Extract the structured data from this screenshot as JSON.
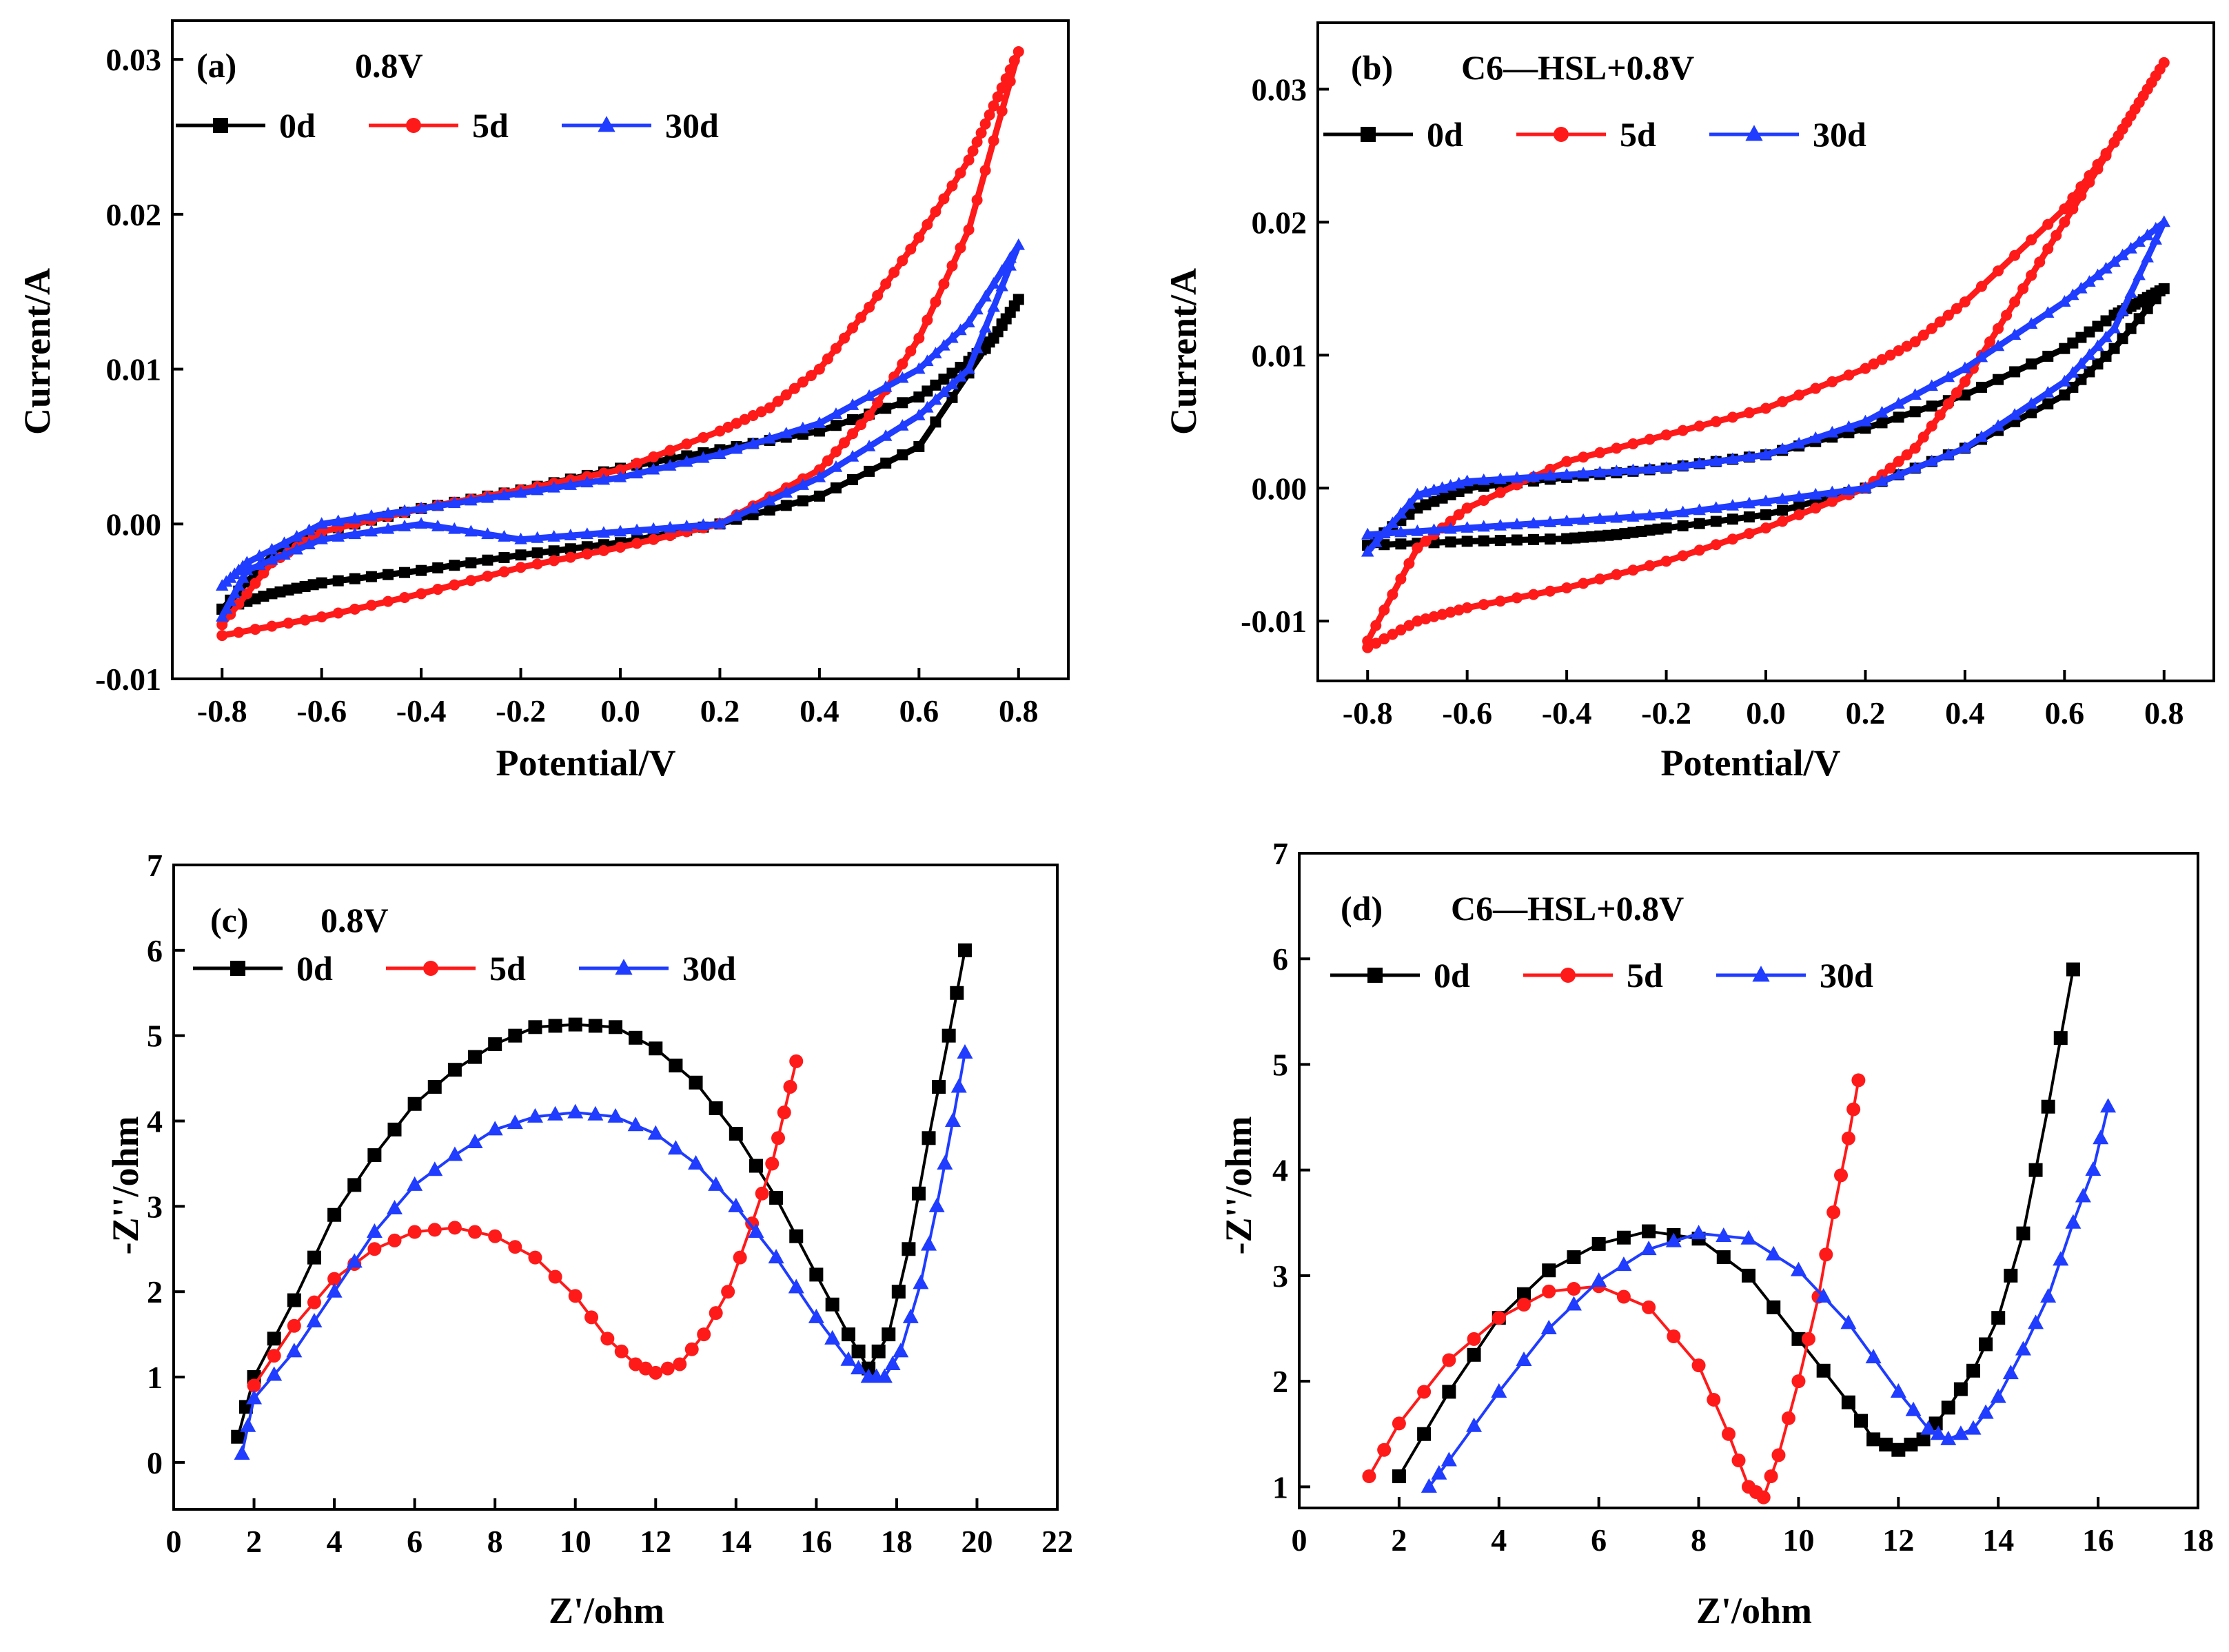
{
  "colors": {
    "s0d": "#000000",
    "s5d": "#ff1a1a",
    "s30d": "#1f3cff"
  },
  "chart_data": [
    {
      "id": "a",
      "type": "line",
      "panel_label": "(a)",
      "title": "0.8V",
      "xlabel": "Potential/V",
      "ylabel": "Current/A",
      "xlim": [
        -0.9,
        0.9
      ],
      "ylim": [
        -0.01,
        0.0325
      ],
      "xticks": [
        -0.8,
        -0.6,
        -0.4,
        -0.2,
        0.0,
        0.2,
        0.4,
        0.6,
        0.8
      ],
      "xtick_labels": [
        "-0.8",
        "-0.6",
        "-0.4",
        "-0.2",
        "0.0",
        "0.2",
        "0.4",
        "0.6",
        "0.8"
      ],
      "yticks": [
        -0.01,
        0.0,
        0.01,
        0.02,
        0.03
      ],
      "ytick_labels": [
        "-0.01",
        "0.00",
        "0.01",
        "0.02",
        "0.03"
      ],
      "series": [
        {
          "name": "0d",
          "color": "#000000",
          "marker": "square",
          "x": [
            -0.8,
            -0.7,
            -0.6,
            -0.4,
            -0.2,
            0,
            0.2,
            0.4,
            0.6,
            0.8,
            0.75,
            0.7,
            0.6,
            0.4,
            0.2,
            0,
            -0.2,
            -0.4,
            -0.6,
            -0.7,
            -0.8
          ],
          "y": [
            -0.0055,
            -0.0045,
            -0.0038,
            -0.003,
            -0.002,
            -0.0012,
            0.0,
            0.0018,
            0.005,
            0.0145,
            0.012,
            0.0105,
            0.0082,
            0.006,
            0.0048,
            0.0036,
            0.0022,
            0.001,
            -0.0005,
            -0.002,
            -0.0055
          ]
        },
        {
          "name": "5d",
          "color": "#ff1a1a",
          "marker": "circle",
          "x": [
            -0.8,
            -0.6,
            -0.4,
            -0.2,
            0,
            0.2,
            0.4,
            0.5,
            0.6,
            0.7,
            0.8,
            0.75,
            0.7,
            0.6,
            0.5,
            0.4,
            0.3,
            0.2,
            0,
            -0.2,
            -0.4,
            -0.6,
            -0.7,
            -0.8
          ],
          "y": [
            -0.0072,
            -0.006,
            -0.0045,
            -0.0028,
            -0.0015,
            0.0,
            0.0035,
            0.007,
            0.012,
            0.019,
            0.0305,
            0.027,
            0.0235,
            0.0185,
            0.014,
            0.01,
            0.0075,
            0.006,
            0.0035,
            0.0022,
            0.001,
            -0.0005,
            -0.0025,
            -0.0065
          ]
        },
        {
          "name": "30d",
          "color": "#1f3cff",
          "marker": "triangle",
          "x": [
            -0.8,
            -0.75,
            -0.6,
            -0.4,
            -0.2,
            0,
            0.2,
            0.4,
            0.6,
            0.7,
            0.8,
            0.7,
            0.6,
            0.4,
            0.2,
            0,
            -0.2,
            -0.4,
            -0.6,
            -0.75,
            -0.8
          ],
          "y": [
            -0.006,
            -0.003,
            -0.001,
            0.0,
            -0.001,
            -0.0005,
            0.0,
            0.003,
            0.007,
            0.01,
            0.018,
            0.013,
            0.01,
            0.0065,
            0.0045,
            0.003,
            0.002,
            0.001,
            0.0,
            -0.0025,
            -0.004
          ]
        }
      ]
    },
    {
      "id": "b",
      "type": "line",
      "panel_label": "(b)",
      "title": "C6—HSL+0.8V",
      "xlabel": "Potential/V",
      "ylabel": "Current/A",
      "xlim": [
        -0.9,
        0.9
      ],
      "ylim": [
        -0.0145,
        0.035
      ],
      "xticks": [
        -0.8,
        -0.6,
        -0.4,
        -0.2,
        0.0,
        0.2,
        0.4,
        0.6,
        0.8
      ],
      "xtick_labels": [
        "-0.8",
        "-0.6",
        "-0.4",
        "-0.2",
        "0.0",
        "0.2",
        "0.4",
        "0.6",
        "0.8"
      ],
      "yticks": [
        -0.01,
        0.0,
        0.01,
        0.02,
        0.03
      ],
      "ytick_labels": [
        "-0.01",
        "0.00",
        "0.01",
        "0.02",
        "0.03"
      ],
      "series": [
        {
          "name": "0d",
          "color": "#000000",
          "marker": "square",
          "x": [
            -0.8,
            -0.6,
            -0.4,
            -0.3,
            -0.2,
            0,
            0.2,
            0.4,
            0.6,
            0.7,
            0.8,
            0.75,
            0.7,
            0.6,
            0.4,
            0.2,
            0,
            -0.2,
            -0.4,
            -0.6,
            -0.7,
            -0.8
          ],
          "y": [
            -0.0043,
            -0.004,
            -0.0038,
            -0.0035,
            -0.003,
            -0.002,
            0.0,
            0.003,
            0.007,
            0.0105,
            0.015,
            0.014,
            0.013,
            0.0105,
            0.007,
            0.0045,
            0.0025,
            0.0015,
            0.0008,
            0.0,
            -0.0015,
            -0.0043
          ]
        },
        {
          "name": "5d",
          "color": "#ff1a1a",
          "marker": "circle",
          "x": [
            -0.8,
            -0.7,
            -0.6,
            -0.4,
            -0.2,
            0,
            0.2,
            0.3,
            0.4,
            0.5,
            0.6,
            0.7,
            0.8,
            0.75,
            0.7,
            0.6,
            0.4,
            0.3,
            0.2,
            0,
            -0.2,
            -0.4,
            -0.6,
            -0.7,
            -0.8
          ],
          "y": [
            -0.012,
            -0.01,
            -0.009,
            -0.0075,
            -0.0055,
            -0.003,
            0.0,
            0.003,
            0.008,
            0.014,
            0.02,
            0.026,
            0.032,
            0.029,
            0.026,
            0.021,
            0.014,
            0.011,
            0.009,
            0.006,
            0.004,
            0.002,
            -0.0015,
            -0.0045,
            -0.0115
          ]
        },
        {
          "name": "30d",
          "color": "#1f3cff",
          "marker": "triangle",
          "x": [
            -0.8,
            -0.6,
            -0.4,
            -0.2,
            0,
            0.2,
            0.4,
            0.6,
            0.7,
            0.8,
            0.7,
            0.6,
            0.4,
            0.2,
            0,
            -0.2,
            -0.4,
            -0.6,
            -0.7,
            -0.8
          ],
          "y": [
            -0.0035,
            -0.003,
            -0.0025,
            -0.002,
            -0.001,
            0.0,
            0.003,
            0.008,
            0.012,
            0.02,
            0.017,
            0.014,
            0.009,
            0.005,
            0.0025,
            0.0015,
            0.001,
            0.0005,
            -0.0005,
            -0.0048
          ]
        }
      ]
    },
    {
      "id": "c",
      "type": "line",
      "panel_label": "(c)",
      "title": "0.8V",
      "xlabel": "Z'/ohm",
      "ylabel": "-Z''/ohm",
      "xlim": [
        0,
        22
      ],
      "ylim": [
        -0.55,
        7
      ],
      "xticks": [
        0,
        2,
        4,
        6,
        8,
        10,
        12,
        14,
        16,
        18,
        20,
        22
      ],
      "xtick_labels": [
        "0",
        "2",
        "4",
        "6",
        "8",
        "10",
        "12",
        "14",
        "16",
        "18",
        "20",
        "22"
      ],
      "yticks": [
        0,
        1,
        2,
        3,
        4,
        5,
        6,
        7
      ],
      "ytick_labels": [
        "0",
        "1",
        "2",
        "3",
        "4",
        "5",
        "6",
        "7"
      ],
      "series": [
        {
          "name": "0d",
          "color": "#000000",
          "marker": "square",
          "x": [
            1.6,
            2.0,
            3.0,
            4.0,
            5.0,
            6.0,
            7.0,
            8.0,
            9.0,
            10.0,
            11.0,
            12.0,
            13.0,
            14.0,
            15.0,
            16.0,
            16.8,
            17.3,
            17.8,
            18.3,
            18.8,
            19.3,
            19.7
          ],
          "y": [
            0.3,
            1.0,
            1.9,
            2.9,
            3.6,
            4.2,
            4.6,
            4.9,
            5.1,
            5.13,
            5.1,
            4.85,
            4.45,
            3.85,
            3.1,
            2.2,
            1.5,
            1.1,
            1.5,
            2.5,
            3.8,
            5.0,
            6.0
          ]
        },
        {
          "name": "5d",
          "color": "#ff1a1a",
          "marker": "circle",
          "x": [
            2.0,
            3.0,
            4.0,
            5.0,
            6.0,
            7.0,
            8.0,
            9.0,
            10.0,
            10.8,
            11.5,
            12.0,
            12.6,
            13.2,
            13.8,
            14.4,
            14.9,
            15.2,
            15.5
          ],
          "y": [
            0.9,
            1.6,
            2.15,
            2.5,
            2.7,
            2.75,
            2.65,
            2.4,
            1.95,
            1.45,
            1.15,
            1.05,
            1.15,
            1.5,
            2.0,
            2.8,
            3.5,
            4.1,
            4.7
          ]
        },
        {
          "name": "30d",
          "color": "#1f3cff",
          "marker": "triangle",
          "x": [
            1.7,
            2.0,
            3.0,
            4.0,
            5.0,
            6.0,
            7.0,
            8.0,
            9.0,
            10.0,
            11.0,
            12.0,
            13.0,
            14.0,
            15.0,
            16.0,
            16.8,
            17.3,
            17.7,
            18.1,
            18.6,
            19.0,
            19.4,
            19.7
          ],
          "y": [
            0.1,
            0.75,
            1.3,
            2.0,
            2.7,
            3.25,
            3.6,
            3.9,
            4.05,
            4.1,
            4.05,
            3.85,
            3.5,
            3.0,
            2.4,
            1.7,
            1.2,
            1.0,
            1.0,
            1.3,
            2.1,
            3.0,
            4.0,
            4.8
          ]
        }
      ]
    },
    {
      "id": "d",
      "type": "line",
      "panel_label": "(d)",
      "title": "C6—HSL+0.8V",
      "xlabel": "Z'/ohm",
      "ylabel": "-Z''/ohm",
      "xlim": [
        0,
        18
      ],
      "ylim": [
        0.8,
        7
      ],
      "xticks": [
        0,
        2,
        4,
        6,
        8,
        10,
        12,
        14,
        16,
        18
      ],
      "xtick_labels": [
        "0",
        "2",
        "4",
        "6",
        "8",
        "10",
        "12",
        "14",
        "16",
        "18"
      ],
      "yticks": [
        1,
        2,
        3,
        4,
        5,
        6,
        7
      ],
      "ytick_labels": [
        "1",
        "2",
        "3",
        "4",
        "5",
        "6",
        "7"
      ],
      "series": [
        {
          "name": "0d",
          "color": "#000000",
          "marker": "square",
          "x": [
            2.0,
            3.0,
            4.0,
            5.0,
            6.0,
            7.0,
            8.0,
            9.0,
            10.0,
            11.0,
            11.5,
            12.0,
            12.5,
            13.0,
            13.5,
            14.0,
            14.5,
            15.0,
            15.5
          ],
          "y": [
            1.1,
            1.9,
            2.6,
            3.05,
            3.3,
            3.42,
            3.35,
            3.0,
            2.4,
            1.8,
            1.45,
            1.35,
            1.45,
            1.75,
            2.1,
            2.6,
            3.4,
            4.6,
            5.9
          ]
        },
        {
          "name": "5d",
          "color": "#ff1a1a",
          "marker": "circle",
          "x": [
            1.4,
            2.0,
            3.0,
            4.0,
            5.0,
            6.0,
            7.0,
            8.0,
            8.6,
            9.0,
            9.3,
            9.6,
            10.0,
            10.4,
            10.7,
            11.0,
            11.2
          ],
          "y": [
            1.1,
            1.6,
            2.2,
            2.6,
            2.85,
            2.9,
            2.7,
            2.15,
            1.5,
            1.0,
            0.9,
            1.3,
            2.0,
            2.8,
            3.6,
            4.3,
            4.85
          ]
        },
        {
          "name": "30d",
          "color": "#1f3cff",
          "marker": "triangle",
          "x": [
            2.6,
            3.0,
            4.0,
            5.0,
            6.0,
            7.0,
            8.0,
            9.0,
            10.0,
            11.0,
            12.0,
            12.6,
            13.0,
            13.5,
            14.0,
            14.5,
            15.0,
            15.5,
            15.9,
            16.2
          ],
          "y": [
            1.0,
            1.25,
            1.9,
            2.5,
            2.95,
            3.25,
            3.4,
            3.35,
            3.05,
            2.55,
            1.9,
            1.55,
            1.45,
            1.55,
            1.85,
            2.3,
            2.8,
            3.5,
            4.0,
            4.6
          ]
        }
      ]
    }
  ]
}
